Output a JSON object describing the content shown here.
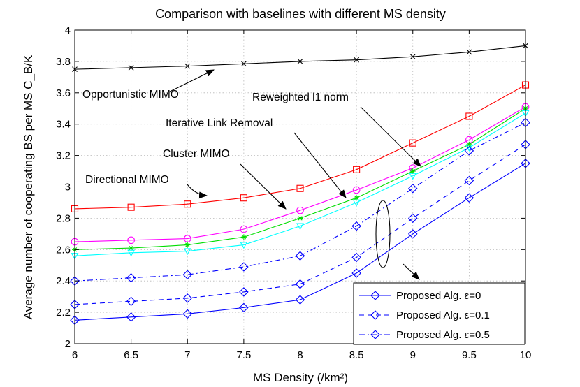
{
  "chart_data": {
    "type": "line",
    "title": "Comparison with baselines with different MS density",
    "xlabel": "MS Density (/km²)",
    "ylabel": "Average number of cooperating BS per MS C_B/K",
    "xlim": [
      6,
      10
    ],
    "ylim": [
      2,
      4
    ],
    "xticks": [
      6,
      6.5,
      7,
      7.5,
      8,
      8.5,
      9,
      9.5,
      10
    ],
    "yticks": [
      2,
      2.2,
      2.4,
      2.6,
      2.8,
      3,
      3.2,
      3.4,
      3.6,
      3.8,
      4
    ],
    "xtick_labels": [
      "6",
      "6.5",
      "7",
      "7.5",
      "8",
      "8.5",
      "9",
      "9.5",
      "10"
    ],
    "ytick_labels": [
      "2",
      "2.2",
      "2.4",
      "2.6",
      "2.8",
      "3",
      "3.2",
      "3.4",
      "3.6",
      "3.8",
      "4"
    ],
    "grid": true,
    "x": [
      6,
      6.5,
      7,
      7.5,
      8,
      8.5,
      9,
      9.5,
      10
    ],
    "series": [
      {
        "name": "Opportunistic MIMO",
        "color": "#000000",
        "marker": "x",
        "dash": "solid",
        "values": [
          3.75,
          3.76,
          3.77,
          3.785,
          3.8,
          3.81,
          3.83,
          3.86,
          3.9
        ]
      },
      {
        "name": "Directional MIMO",
        "color": "#ff0000",
        "marker": "square",
        "dash": "solid",
        "values": [
          2.86,
          2.87,
          2.89,
          2.93,
          2.99,
          3.11,
          3.28,
          3.45,
          3.65
        ]
      },
      {
        "name": "Cluster MIMO",
        "color": "#ff00ff",
        "marker": "circle",
        "dash": "solid",
        "values": [
          2.65,
          2.66,
          2.67,
          2.73,
          2.85,
          2.98,
          3.12,
          3.3,
          3.51
        ]
      },
      {
        "name": "Iterative Link Removal",
        "color": "#00dd00",
        "marker": "star",
        "dash": "solid",
        "values": [
          2.6,
          2.61,
          2.63,
          2.68,
          2.8,
          2.93,
          3.1,
          3.27,
          3.5
        ]
      },
      {
        "name": "Reweighted l1 norm",
        "color": "#00ffff",
        "marker": "triangle-down",
        "dash": "solid",
        "values": [
          2.56,
          2.58,
          2.59,
          2.63,
          2.75,
          2.9,
          3.07,
          3.25,
          3.47
        ]
      },
      {
        "name": "Proposed Alg. ε=0",
        "color": "#0000ff",
        "marker": "diamond",
        "dash": "solid",
        "values": [
          2.15,
          2.17,
          2.19,
          2.23,
          2.28,
          2.45,
          2.7,
          2.93,
          3.15
        ]
      },
      {
        "name": "Proposed Alg. ε=0.1",
        "color": "#0000ff",
        "marker": "diamond",
        "dash": "dashed",
        "values": [
          2.25,
          2.27,
          2.29,
          2.33,
          2.38,
          2.55,
          2.8,
          3.04,
          3.27
        ]
      },
      {
        "name": "Proposed Alg. ε=0.5",
        "color": "#0000ff",
        "marker": "diamond",
        "dash": "dashdot",
        "values": [
          2.4,
          2.42,
          2.44,
          2.49,
          2.56,
          2.75,
          2.99,
          3.23,
          3.41
        ]
      }
    ],
    "annotations": [
      {
        "text": "Opportunistic MIMO",
        "color": "#000000",
        "target": [
          7.6,
          3.84
        ]
      },
      {
        "text": "Reweighted l1 norm",
        "color": "#00ffff",
        "target": [
          9.1,
          3.12
        ]
      },
      {
        "text": "Iterative Link Removal",
        "color": "#00dd00",
        "target": [
          8.65,
          2.93
        ]
      },
      {
        "text": "Cluster MIMO",
        "color": "#ff00ff",
        "target": [
          8.1,
          2.83
        ]
      },
      {
        "text": "Directional MIMO",
        "color": "#ff0000",
        "target": [
          7.0,
          2.94
        ]
      }
    ],
    "legend": {
      "position": "bottom-right",
      "entries": [
        "Proposed Alg. ε=0",
        "Proposed Alg. ε=0.1",
        "Proposed Alg. ε=0.5"
      ]
    }
  }
}
